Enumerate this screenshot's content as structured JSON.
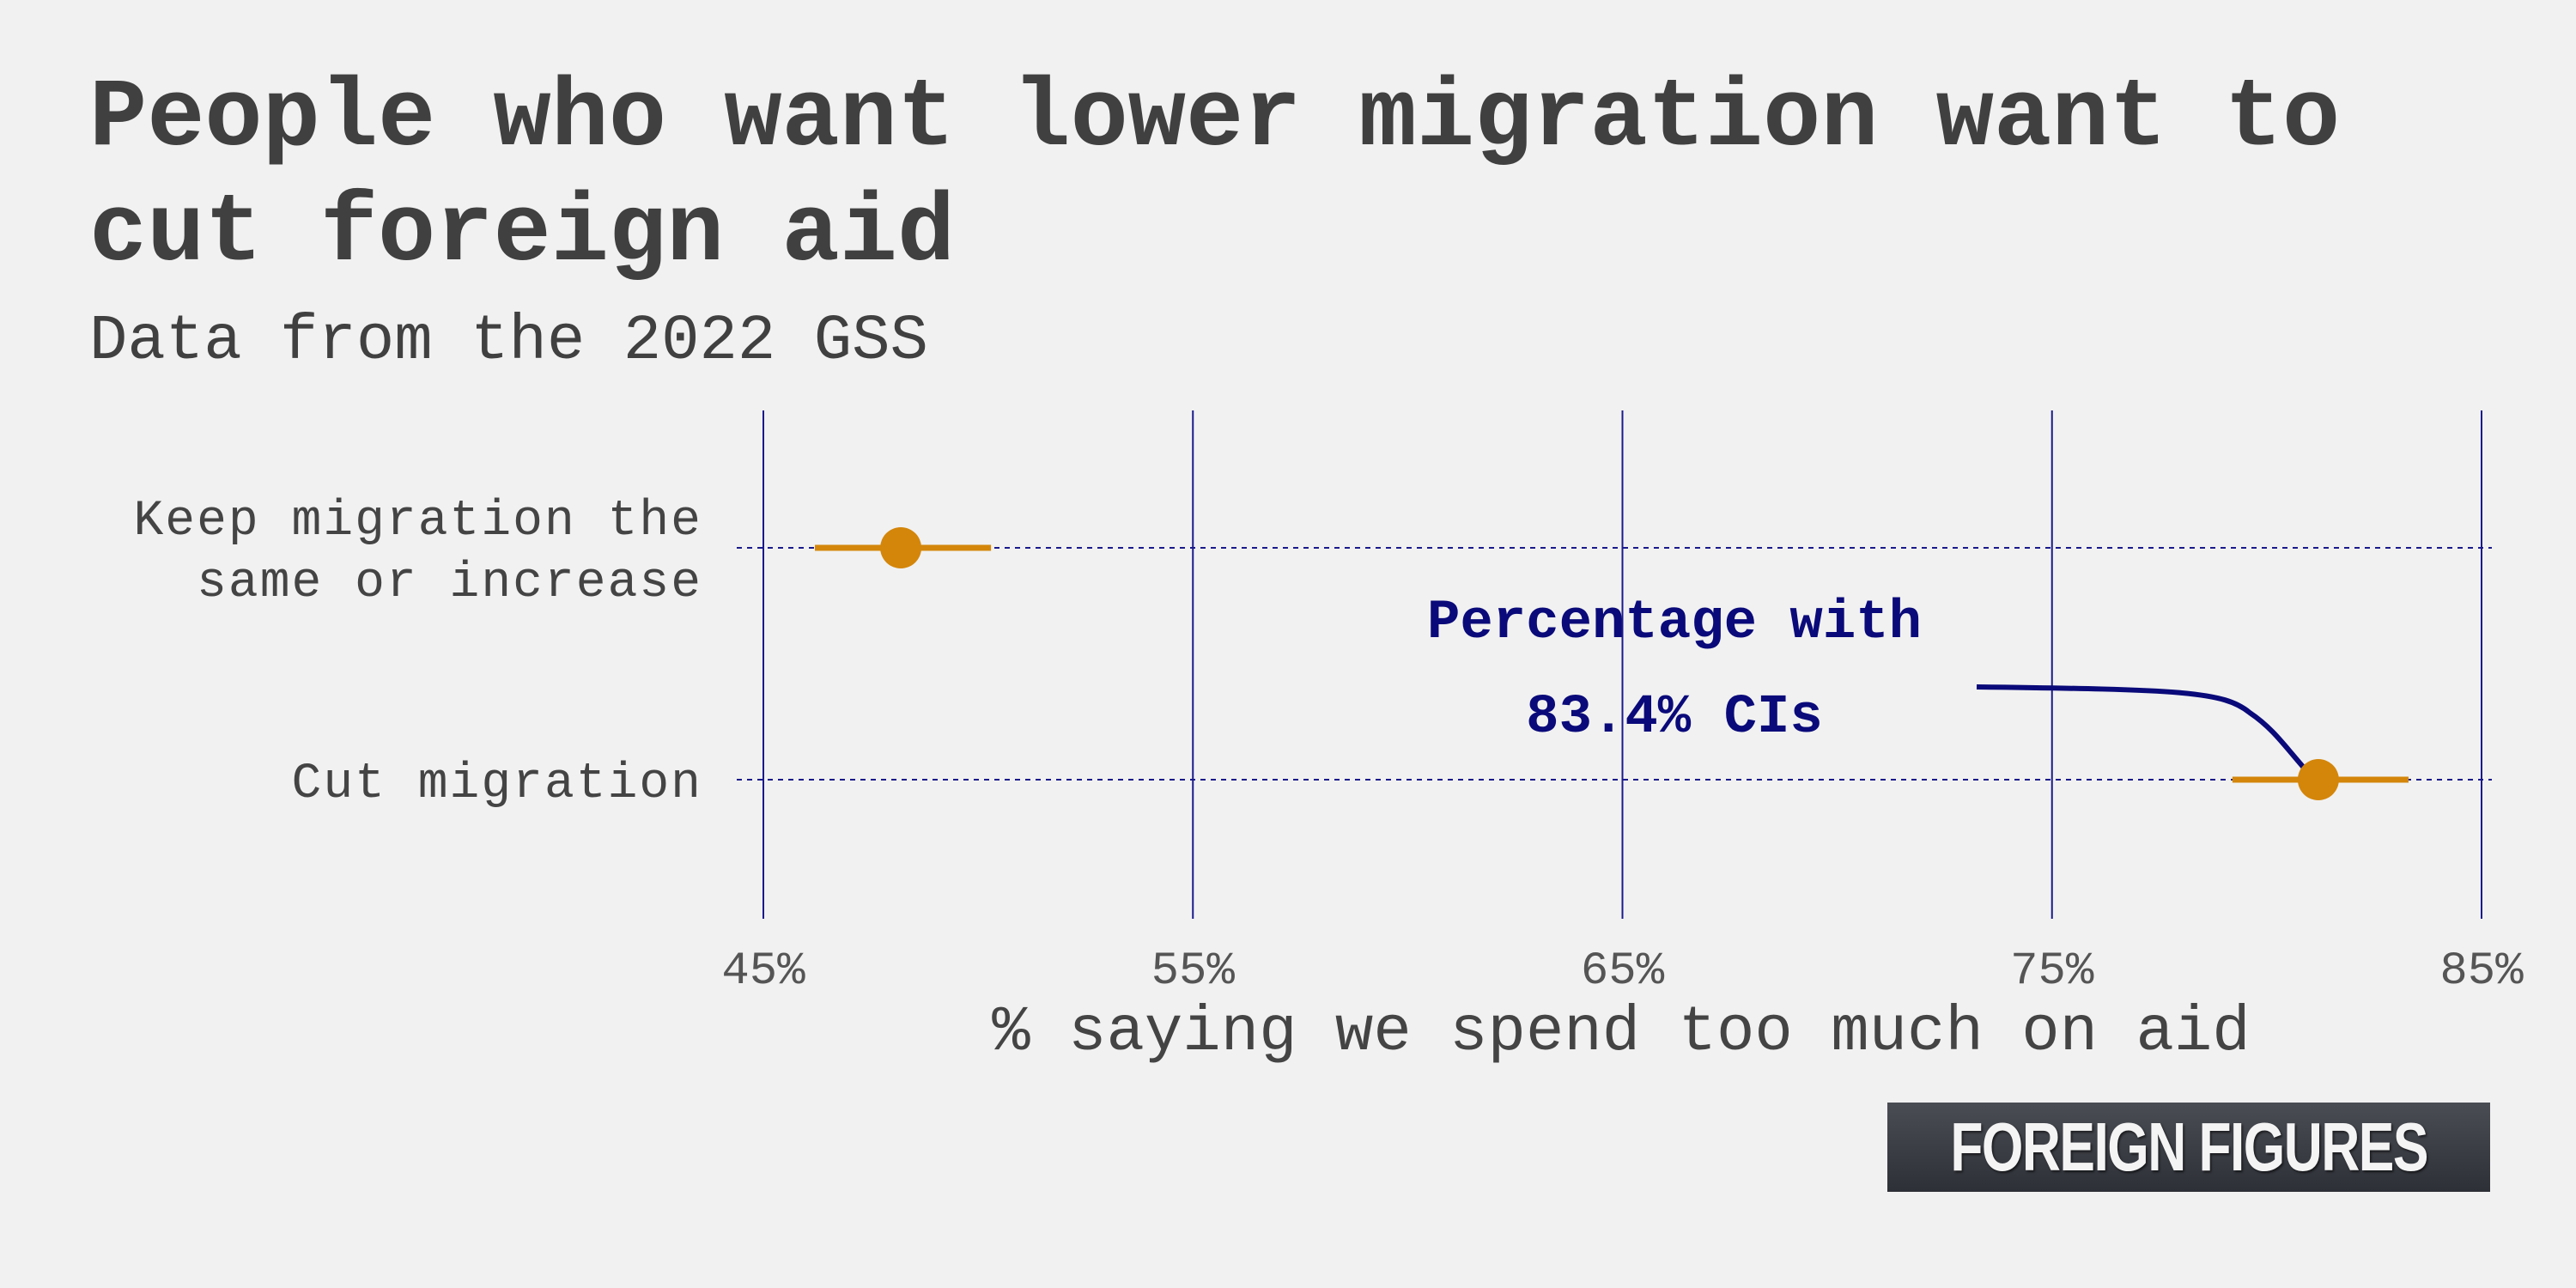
{
  "chart_data": {
    "type": "scatter",
    "title": "People who want lower migration want to cut foreign aid",
    "subtitle": "Data from the 2022 GSS",
    "xlabel": "% saying we spend too much on aid",
    "ylabel": "",
    "xlim": [
      45,
      85
    ],
    "x_ticks": [
      45,
      55,
      65,
      75,
      85
    ],
    "x_tick_labels": [
      "45%",
      "55%",
      "65%",
      "75%",
      "85%"
    ],
    "categories": [
      [
        "Keep migration the",
        "same or increase"
      ],
      [
        "Cut migration"
      ]
    ],
    "series": [
      {
        "points": [
          {
            "value": 48.2,
            "ci_low": 46.2,
            "ci_high": 50.3
          },
          {
            "value": 81.2,
            "ci_low": 79.2,
            "ci_high": 83.3
          }
        ]
      }
    ],
    "annotation": {
      "lines": [
        "Percentage with",
        "83.4% CIs"
      ]
    },
    "grid": true,
    "colors": {
      "point": "#d4860a",
      "grid": "#1a1a8c",
      "annotation": "#0a0a7a",
      "text": "#404040",
      "background": "#f1f1f1"
    }
  },
  "logo": {
    "text": "FOREIGN FIGURES"
  }
}
